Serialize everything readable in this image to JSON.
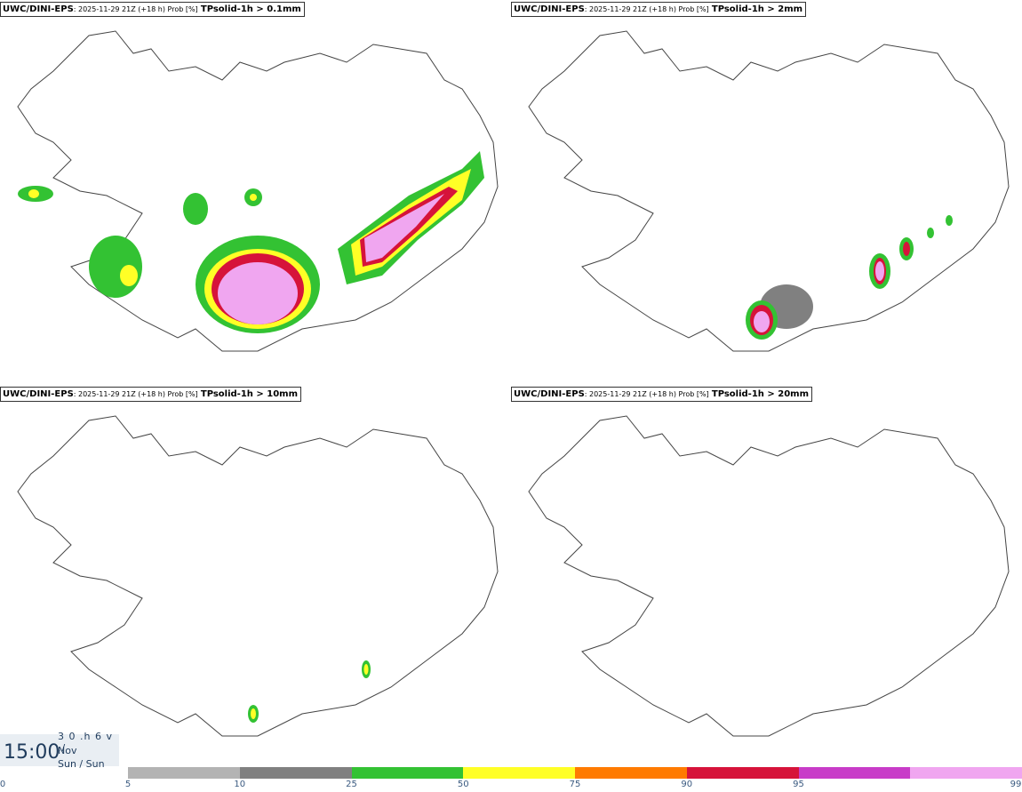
{
  "panels": [
    {
      "source": "UWC/DINI-EPS",
      "meta": ": 2025-11-29 21Z (+18 h) Prob [%]",
      "variable": "TPsolid-1h > 0.1mm"
    },
    {
      "source": "UWC/DINI-EPS",
      "meta": ": 2025-11-29 21Z (+18 h) Prob [%]",
      "variable": "TPsolid-1h > 2mm"
    },
    {
      "source": "UWC/DINI-EPS",
      "meta": ": 2025-11-29 21Z (+18 h) Prob [%]",
      "variable": "TPsolid-1h > 10mm"
    },
    {
      "source": "UWC/DINI-EPS",
      "meta": ": 2025-11-29 21Z (+18 h) Prob [%]",
      "variable": "TPsolid-1h > 20mm"
    }
  ],
  "time_display": {
    "time": "15:00",
    "line1": "3 0 .h 6 v ./",
    "line2": "Nov",
    "line3": "Sun / Sun"
  },
  "legend": {
    "ticks": [
      "0",
      "5",
      "10",
      "25",
      "50",
      "75",
      "90",
      "95",
      "99"
    ],
    "colors": [
      "#b3b3b3",
      "#808080",
      "#33c233",
      "#ffff26",
      "#ff7a00",
      "#d6133a",
      "#c83cc8",
      "#f0a6f0"
    ]
  }
}
